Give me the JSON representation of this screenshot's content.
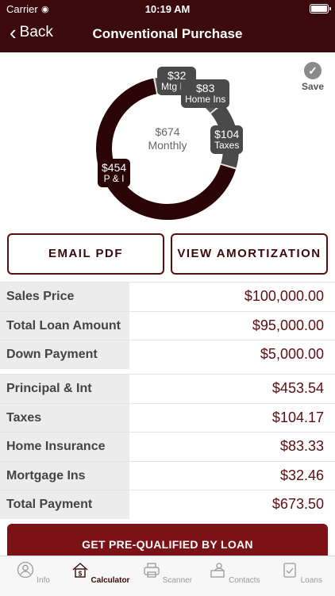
{
  "status": {
    "carrier": "Carrier",
    "time": "10:19 AM"
  },
  "nav": {
    "back_label": "Back",
    "title": "Conventional Purchase"
  },
  "save_label": "Save",
  "chart_data": {
    "type": "pie",
    "categories": [
      "P & I",
      "Mtg Ins",
      "Home Ins",
      "Taxes"
    ],
    "values": [
      454,
      32,
      83,
      104
    ],
    "value_labels": [
      "$454",
      "$32",
      "$83",
      "$104"
    ],
    "center_amount": "$674",
    "center_label": "Monthly"
  },
  "buttons": {
    "email_pdf": "EMAIL PDF",
    "view_amortization": "VIEW AMORTIZATION"
  },
  "summary": [
    {
      "label": "Sales Price",
      "value": "$100,000.00"
    },
    {
      "label": "Total Loan Amount",
      "value": "$95,000.00"
    },
    {
      "label": "Down Payment",
      "value": "$5,000.00"
    }
  ],
  "payment": [
    {
      "label": "Principal & Int",
      "value": "$453.54"
    },
    {
      "label": "Taxes",
      "value": "$104.17"
    },
    {
      "label": "Home Insurance",
      "value": "$83.33"
    },
    {
      "label": "Mortgage Ins",
      "value": "$32.46"
    },
    {
      "label": "Total Payment",
      "value": "$673.50"
    }
  ],
  "cta_label": "GET PRE-QUALIFIED BY LOAN",
  "tabs": [
    {
      "label": "Info",
      "icon": "person-icon"
    },
    {
      "label": "Calculator",
      "icon": "calculator-house-icon",
      "active": true
    },
    {
      "label": "Scanner",
      "icon": "scanner-icon"
    },
    {
      "label": "Contacts",
      "icon": "contacts-icon"
    },
    {
      "label": "Loans",
      "icon": "clipboard-check-icon"
    }
  ]
}
